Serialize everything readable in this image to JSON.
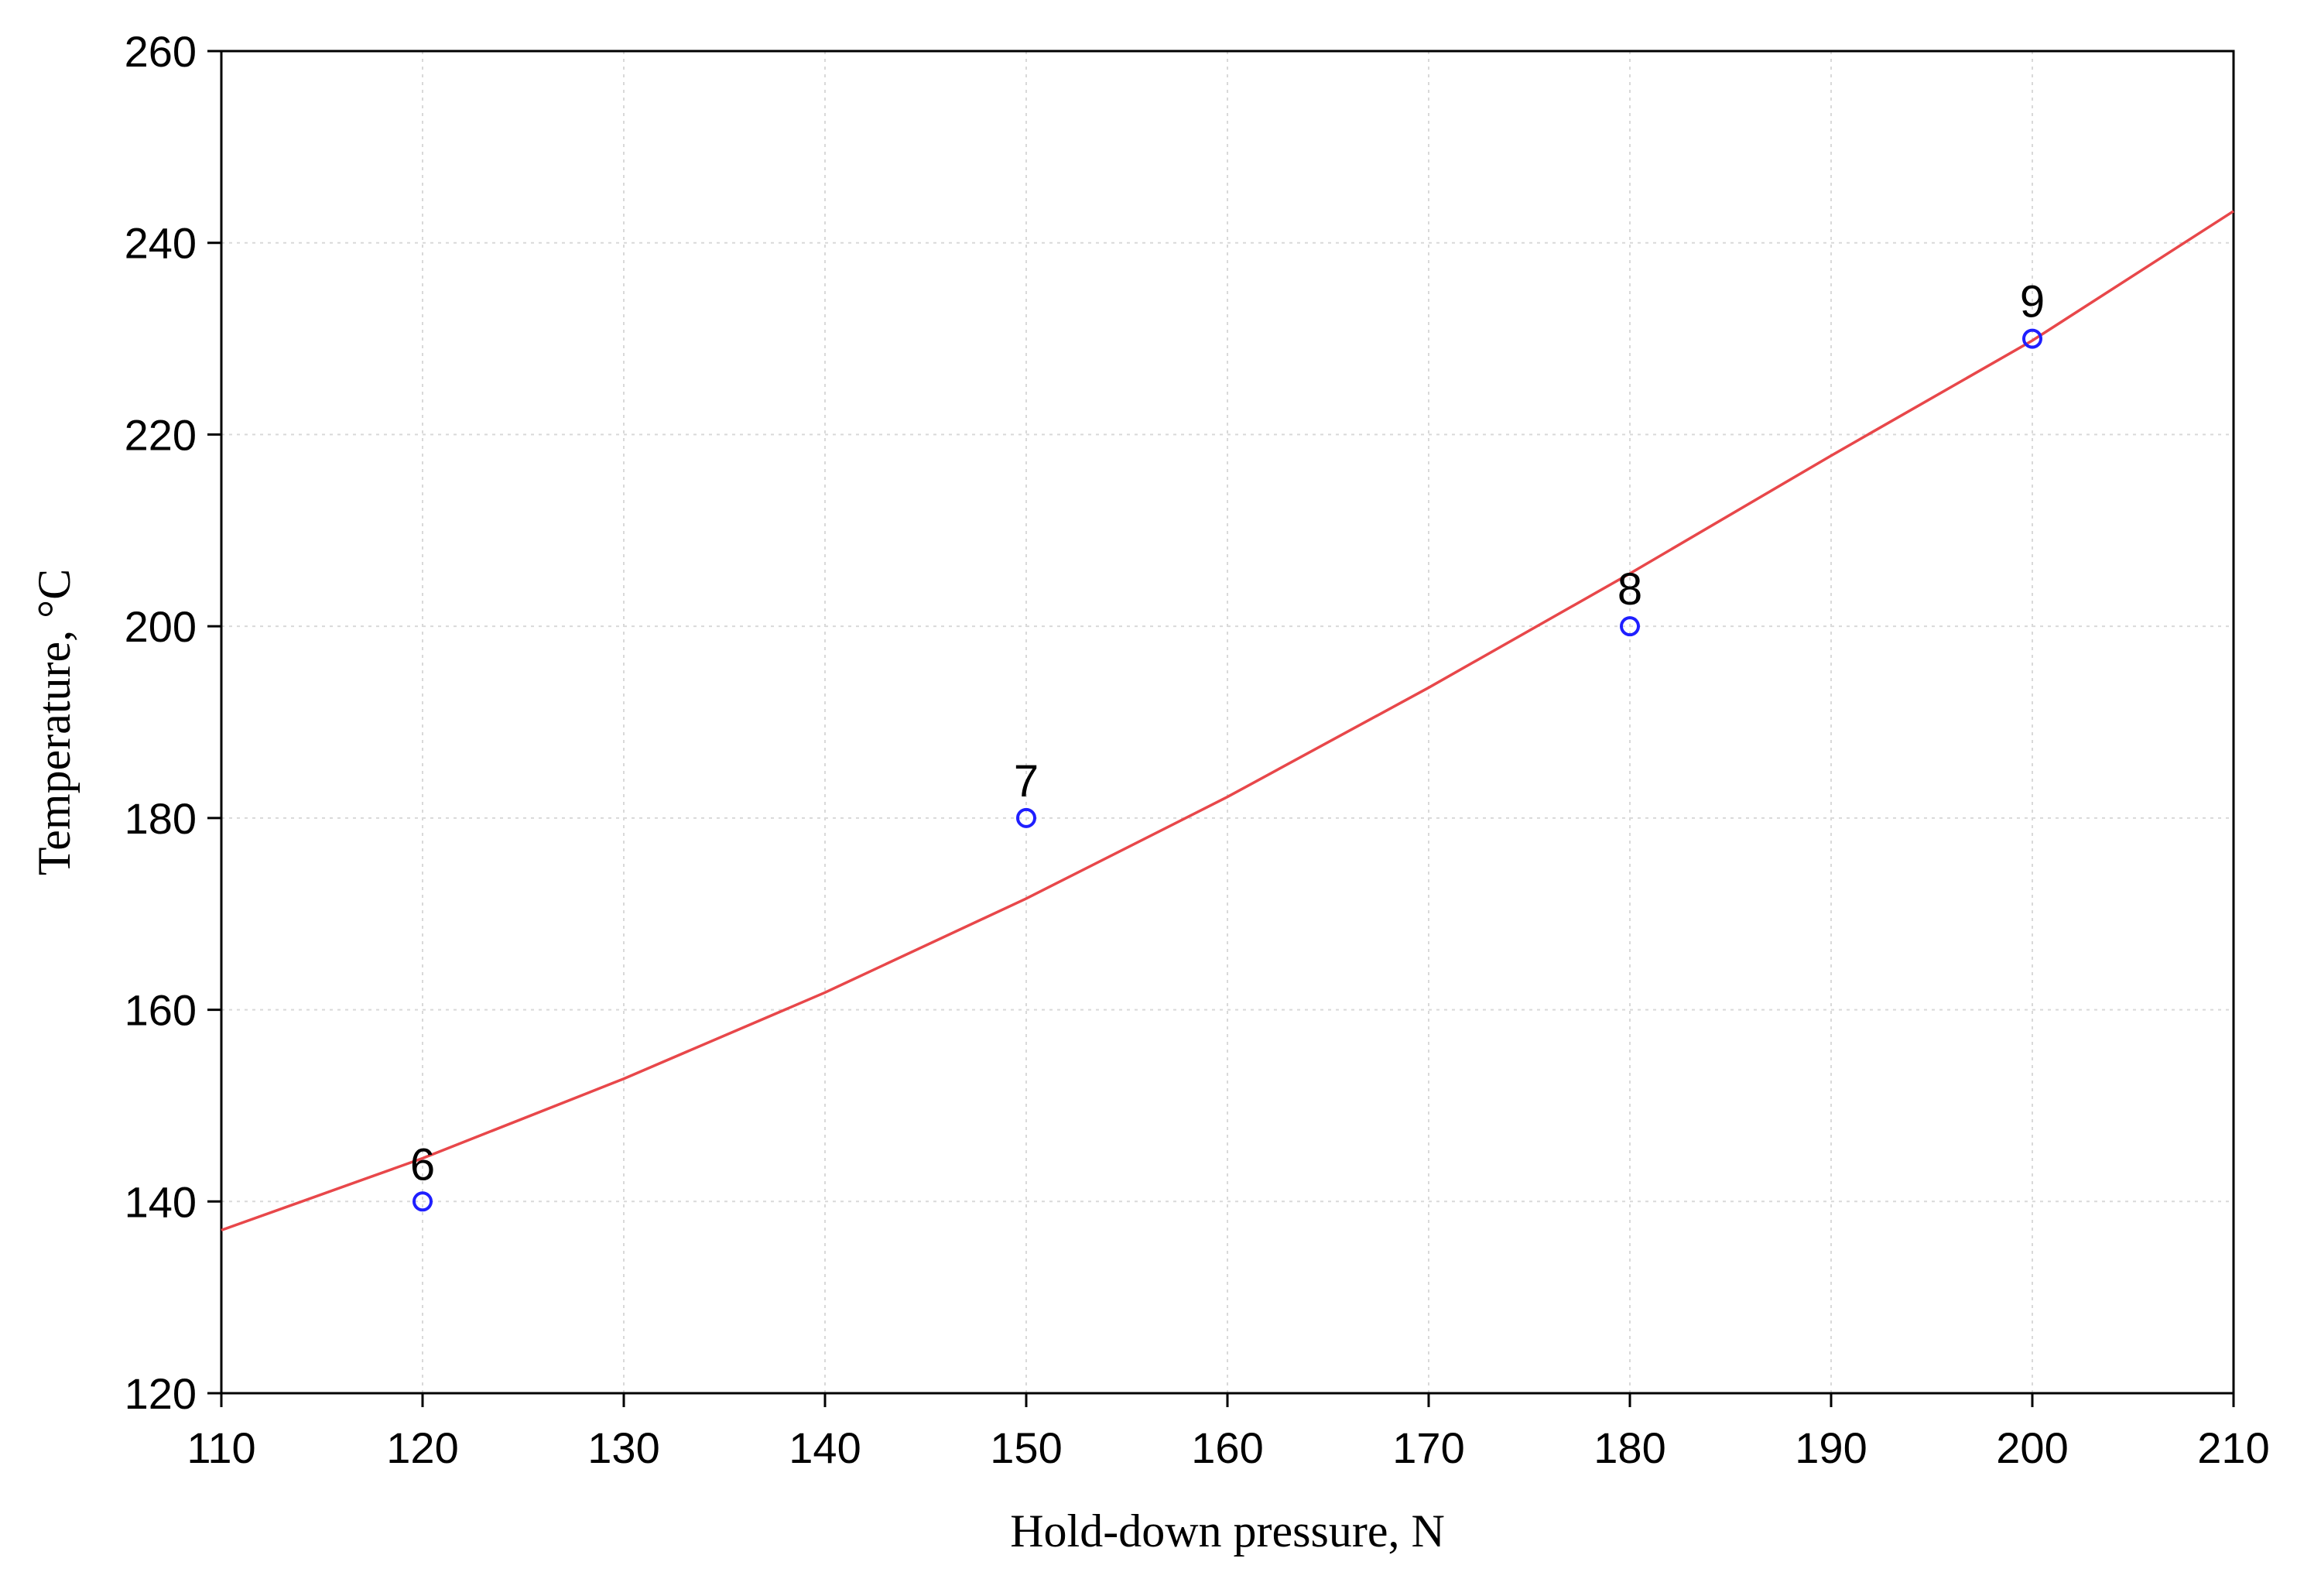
{
  "chart_data": {
    "type": "scatter",
    "title": "",
    "xlabel": "Hold-down pressure, N",
    "ylabel": "Temperature, °C",
    "xlim": [
      110,
      210
    ],
    "ylim": [
      120,
      260
    ],
    "xticks": [
      110,
      120,
      130,
      140,
      150,
      160,
      170,
      180,
      190,
      200,
      210
    ],
    "yticks": [
      120,
      140,
      160,
      180,
      200,
      220,
      240,
      260
    ],
    "grid": true,
    "legend": "none",
    "points": [
      {
        "x": 120,
        "y": 140,
        "label": "6"
      },
      {
        "x": 150,
        "y": 180,
        "label": "7"
      },
      {
        "x": 180,
        "y": 200,
        "label": "8"
      },
      {
        "x": 200,
        "y": 230,
        "label": "9"
      }
    ],
    "fit_curve": {
      "x": [
        110,
        120,
        130,
        140,
        150,
        160,
        170,
        180,
        190,
        200,
        210
      ],
      "y": [
        137,
        144.5,
        152.8,
        161.8,
        171.6,
        182.2,
        193.6,
        205.5,
        217.8,
        229.8,
        243.3
      ]
    },
    "colors": {
      "points": "#1f1fff",
      "curve": "#e8474a",
      "grid": "#d9d9d9",
      "axes": "#000000"
    }
  }
}
